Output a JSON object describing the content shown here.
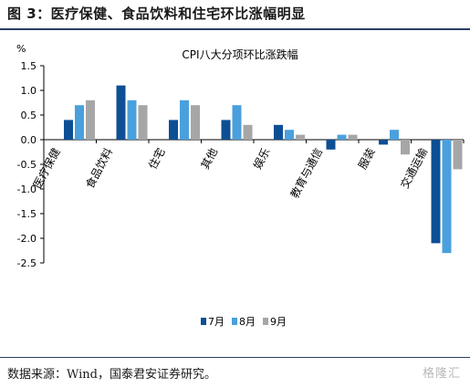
{
  "figure_title": "图 3：医疗保健、食品饮料和住宅环比涨幅明显",
  "source_note": "数据来源：Wind，国泰君安证券研究。",
  "watermark": "格隆汇",
  "colors": {
    "jul": "#0d4f94",
    "aug": "#4aa0dc",
    "sep": "#a6a6a6",
    "rule": "#2c3e63"
  },
  "chart_data": {
    "type": "bar",
    "title": "CPI八大分项环比涨跌幅",
    "ylabel": "%",
    "xlabel": "",
    "ylim": [
      -2.5,
      1.5
    ],
    "yticks": [
      "1.5",
      "1.0",
      "0.5",
      "0.0",
      "-0.5",
      "-1.0",
      "-1.5",
      "-2.0",
      "-2.5"
    ],
    "categories": [
      "医疗保健",
      "食品饮料",
      "住宅",
      "其他",
      "娱乐",
      "教育与通信",
      "服装",
      "交通运输"
    ],
    "series": [
      {
        "name": "7月",
        "values": [
          0.4,
          1.1,
          0.4,
          0.4,
          0.3,
          -0.2,
          -0.1,
          -2.1
        ]
      },
      {
        "name": "8月",
        "values": [
          0.7,
          0.8,
          0.8,
          0.7,
          0.2,
          0.1,
          0.2,
          -2.3
        ]
      },
      {
        "name": "9月",
        "values": [
          0.8,
          0.7,
          0.7,
          0.3,
          0.1,
          0.1,
          -0.3,
          -0.6
        ]
      }
    ],
    "legend_position": "bottom",
    "grid": false
  }
}
